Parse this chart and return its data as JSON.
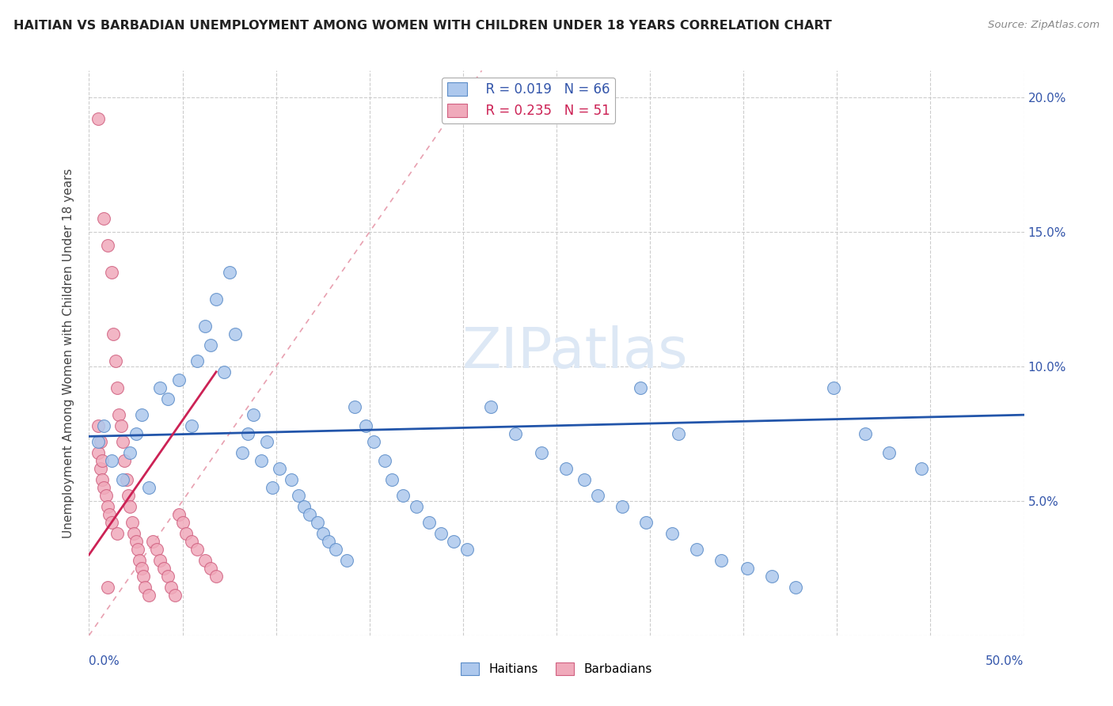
{
  "title": "HAITIAN VS BARBADIAN UNEMPLOYMENT AMONG WOMEN WITH CHILDREN UNDER 18 YEARS CORRELATION CHART",
  "source": "Source: ZipAtlas.com",
  "ylabel": "Unemployment Among Women with Children Under 18 years",
  "xlim": [
    0.0,
    0.5
  ],
  "ylim": [
    0.0,
    0.21
  ],
  "yticks": [
    0.0,
    0.05,
    0.1,
    0.15,
    0.2
  ],
  "ytick_labels": [
    "",
    "5.0%",
    "10.0%",
    "15.0%",
    "20.0%"
  ],
  "xtick_labels": [
    "0.0%",
    "50.0%"
  ],
  "legend_blue_r": "R = 0.019",
  "legend_blue_n": "N = 66",
  "legend_pink_r": "R = 0.235",
  "legend_pink_n": "N = 51",
  "watermark": "ZIPatlas",
  "haitian_color": "#adc8ed",
  "haitian_edge": "#5b8cc8",
  "barbadian_color": "#f0aabb",
  "barbadian_edge": "#d06080",
  "haitian_line_color": "#2255aa",
  "barbadian_line_color": "#cc2255",
  "diagonal_color": "#e8a0b0",
  "background_color": "#ffffff",
  "haitians_x": [
    0.005,
    0.008,
    0.012,
    0.018,
    0.022,
    0.025,
    0.028,
    0.032,
    0.038,
    0.042,
    0.048,
    0.055,
    0.058,
    0.062,
    0.065,
    0.068,
    0.072,
    0.075,
    0.078,
    0.082,
    0.085,
    0.088,
    0.092,
    0.095,
    0.098,
    0.102,
    0.108,
    0.112,
    0.115,
    0.118,
    0.122,
    0.125,
    0.128,
    0.132,
    0.138,
    0.142,
    0.148,
    0.152,
    0.158,
    0.162,
    0.168,
    0.175,
    0.182,
    0.188,
    0.195,
    0.202,
    0.215,
    0.228,
    0.242,
    0.255,
    0.265,
    0.272,
    0.285,
    0.298,
    0.312,
    0.325,
    0.338,
    0.352,
    0.365,
    0.378,
    0.398,
    0.415,
    0.428,
    0.445,
    0.315,
    0.295
  ],
  "haitians_y": [
    0.072,
    0.078,
    0.065,
    0.058,
    0.068,
    0.075,
    0.082,
    0.055,
    0.092,
    0.088,
    0.095,
    0.078,
    0.102,
    0.115,
    0.108,
    0.125,
    0.098,
    0.135,
    0.112,
    0.068,
    0.075,
    0.082,
    0.065,
    0.072,
    0.055,
    0.062,
    0.058,
    0.052,
    0.048,
    0.045,
    0.042,
    0.038,
    0.035,
    0.032,
    0.028,
    0.085,
    0.078,
    0.072,
    0.065,
    0.058,
    0.052,
    0.048,
    0.042,
    0.038,
    0.035,
    0.032,
    0.085,
    0.075,
    0.068,
    0.062,
    0.058,
    0.052,
    0.048,
    0.042,
    0.038,
    0.032,
    0.028,
    0.025,
    0.022,
    0.018,
    0.092,
    0.075,
    0.068,
    0.062,
    0.075,
    0.092
  ],
  "barbadians_x": [
    0.005,
    0.005,
    0.005,
    0.006,
    0.006,
    0.007,
    0.007,
    0.008,
    0.008,
    0.009,
    0.01,
    0.01,
    0.011,
    0.012,
    0.012,
    0.013,
    0.014,
    0.015,
    0.015,
    0.016,
    0.017,
    0.018,
    0.019,
    0.02,
    0.021,
    0.022,
    0.023,
    0.024,
    0.025,
    0.026,
    0.027,
    0.028,
    0.029,
    0.03,
    0.032,
    0.034,
    0.036,
    0.038,
    0.04,
    0.042,
    0.044,
    0.046,
    0.048,
    0.05,
    0.052,
    0.055,
    0.058,
    0.062,
    0.065,
    0.068,
    0.01
  ],
  "barbadians_y": [
    0.192,
    0.078,
    0.068,
    0.072,
    0.062,
    0.065,
    0.058,
    0.155,
    0.055,
    0.052,
    0.145,
    0.048,
    0.045,
    0.135,
    0.042,
    0.112,
    0.102,
    0.092,
    0.038,
    0.082,
    0.078,
    0.072,
    0.065,
    0.058,
    0.052,
    0.048,
    0.042,
    0.038,
    0.035,
    0.032,
    0.028,
    0.025,
    0.022,
    0.018,
    0.015,
    0.035,
    0.032,
    0.028,
    0.025,
    0.022,
    0.018,
    0.015,
    0.045,
    0.042,
    0.038,
    0.035,
    0.032,
    0.028,
    0.025,
    0.022,
    0.018
  ],
  "haitian_trend_x": [
    0.0,
    0.5
  ],
  "haitian_trend_y": [
    0.074,
    0.082
  ],
  "barbadian_trend_x": [
    0.0,
    0.068
  ],
  "barbadian_trend_y": [
    0.03,
    0.098
  ]
}
